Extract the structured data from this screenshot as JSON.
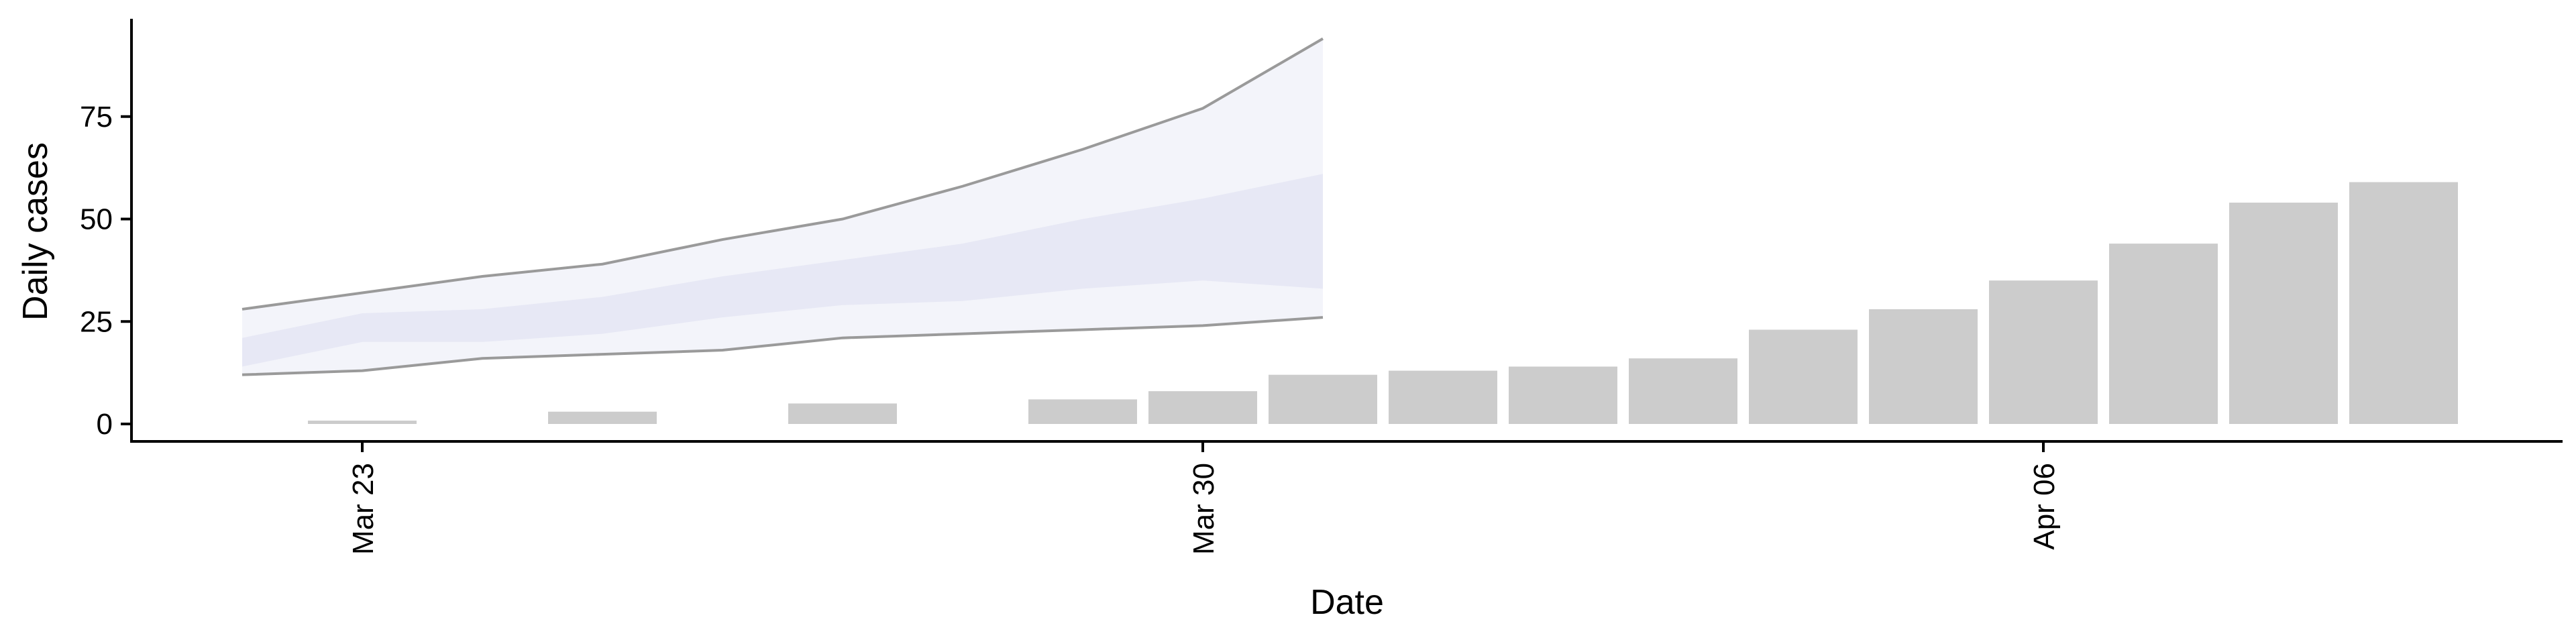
{
  "chart_data": {
    "type": "bar",
    "xlabel": "Date",
    "ylabel": "Daily cases",
    "x_axis": {
      "type": "date",
      "ticks": [
        {
          "date": "2020-03-23",
          "label": "Mar 23"
        },
        {
          "date": "2020-03-30",
          "label": "Mar 30"
        },
        {
          "date": "2020-04-06",
          "label": "Apr 06"
        }
      ],
      "range": [
        "2020-03-21",
        "2020-04-11"
      ]
    },
    "y_axis": {
      "ticks": [
        0,
        25,
        50,
        75
      ],
      "range": [
        -4,
        100
      ]
    },
    "grid": false,
    "bar_color": "#cccccc",
    "band_color": "#dcdff0",
    "line_color": "#9a9a9a",
    "observed": {
      "dates": [
        "2020-03-23",
        "2020-03-24",
        "2020-03-25",
        "2020-03-26",
        "2020-03-27",
        "2020-03-28",
        "2020-03-29",
        "2020-03-30",
        "2020-03-31",
        "2020-04-01",
        "2020-04-02",
        "2020-04-03",
        "2020-04-04",
        "2020-04-05",
        "2020-04-06",
        "2020-04-07",
        "2020-04-08",
        "2020-04-09",
        "2020-04-10"
      ],
      "values": [
        0,
        null,
        3,
        null,
        5,
        null,
        6,
        8,
        12,
        13,
        14,
        16,
        23,
        28,
        35,
        44,
        54,
        59,
        null
      ]
    },
    "forecast": {
      "dates": [
        "2020-03-22",
        "2020-03-23",
        "2020-03-24",
        "2020-03-25",
        "2020-03-26",
        "2020-03-27",
        "2020-03-28",
        "2020-03-29",
        "2020-03-30",
        "2020-03-31"
      ],
      "outer_upper": [
        28,
        32,
        36,
        39,
        45,
        50,
        58,
        67,
        77,
        94
      ],
      "outer_lower": [
        12,
        13,
        16,
        17,
        18,
        21,
        22,
        23,
        24,
        26
      ],
      "inner_upper": [
        21,
        27,
        28,
        31,
        36,
        40,
        44,
        50,
        55,
        61
      ],
      "inner_lower": [
        14,
        20,
        20,
        22,
        26,
        29,
        30,
        33,
        35,
        33
      ]
    }
  }
}
